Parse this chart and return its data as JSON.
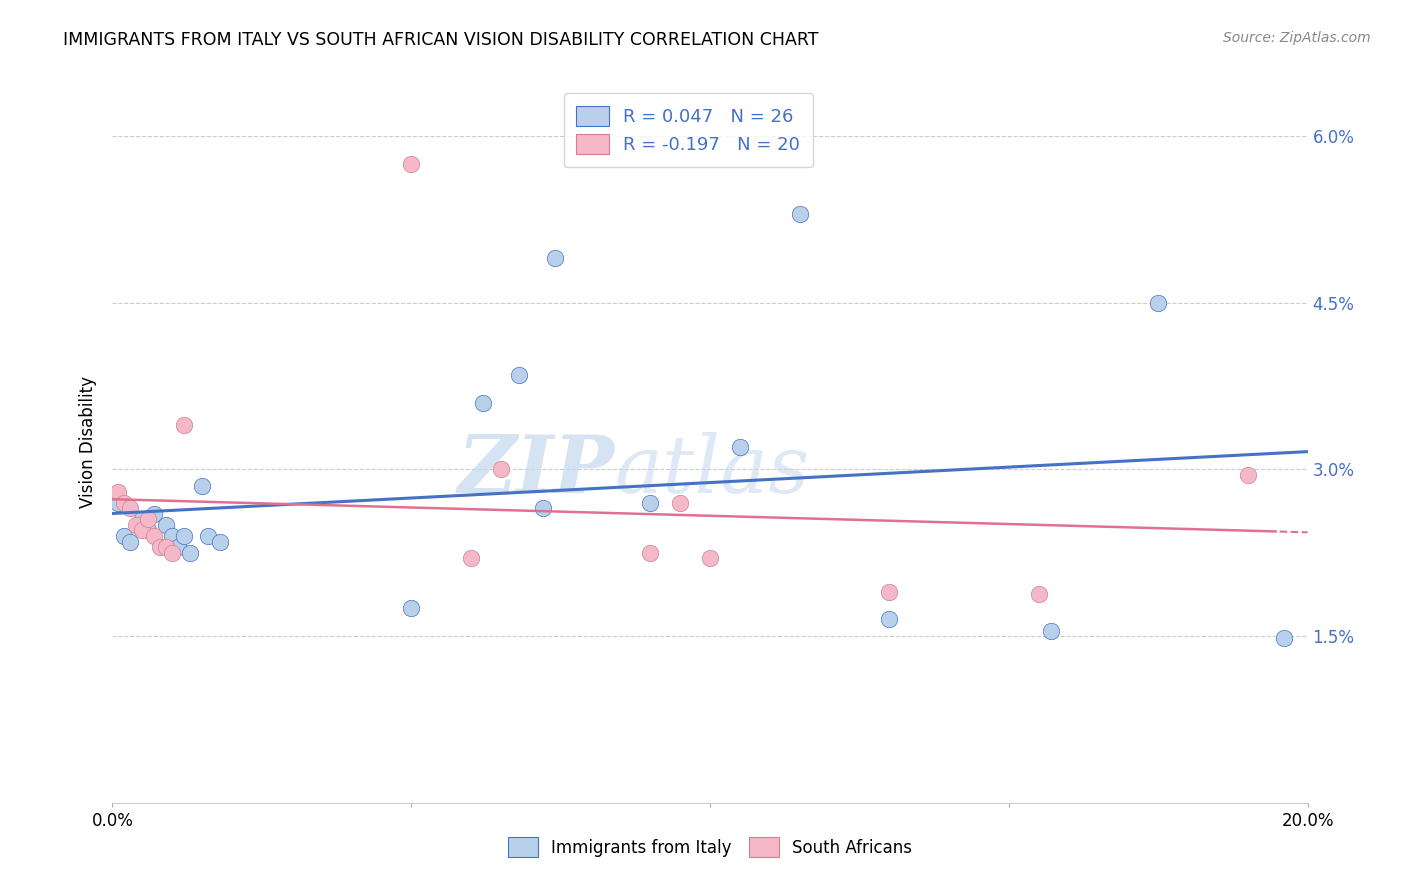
{
  "title": "IMMIGRANTS FROM ITALY VS SOUTH AFRICAN VISION DISABILITY CORRELATION CHART",
  "source": "Source: ZipAtlas.com",
  "ylabel": "Vision Disability",
  "xlabel": "",
  "xlim": [
    0.0,
    0.2
  ],
  "ylim": [
    0.0,
    0.065
  ],
  "yticks": [
    0.015,
    0.03,
    0.045,
    0.06
  ],
  "ytick_labels": [
    "1.5%",
    "3.0%",
    "4.5%",
    "6.0%"
  ],
  "xticks": [
    0.0,
    0.05,
    0.1,
    0.15,
    0.2
  ],
  "xtick_labels": [
    "0.0%",
    "",
    "",
    "",
    "20.0%"
  ],
  "legend1_label": "R = 0.047   N = 26",
  "legend2_label": "R = -0.197   N = 20",
  "legend_foot1": "Immigrants from Italy",
  "legend_foot2": "South Africans",
  "blue_color": "#b8d0ea",
  "pink_color": "#f5b8c8",
  "blue_line_color": "#4472c4",
  "pink_line_color": "#e07090",
  "grid_color": "#cccccc",
  "background_color": "#ffffff",
  "blue_R": 0.047,
  "blue_N": 26,
  "pink_R": -0.197,
  "pink_N": 20,
  "blue_points_x": [
    0.001,
    0.002,
    0.003,
    0.005,
    0.006,
    0.007,
    0.009,
    0.01,
    0.011,
    0.012,
    0.013,
    0.015,
    0.016,
    0.018,
    0.05,
    0.062,
    0.068,
    0.072,
    0.074,
    0.09,
    0.105,
    0.115,
    0.13,
    0.157,
    0.175,
    0.196
  ],
  "blue_points_y": [
    0.027,
    0.024,
    0.0235,
    0.0255,
    0.0245,
    0.026,
    0.025,
    0.024,
    0.023,
    0.024,
    0.0225,
    0.0285,
    0.024,
    0.0235,
    0.0175,
    0.036,
    0.0385,
    0.0265,
    0.049,
    0.027,
    0.032,
    0.053,
    0.0165,
    0.0155,
    0.045,
    0.0148
  ],
  "pink_points_x": [
    0.001,
    0.002,
    0.003,
    0.004,
    0.005,
    0.006,
    0.007,
    0.008,
    0.009,
    0.01,
    0.012,
    0.05,
    0.06,
    0.065,
    0.09,
    0.095,
    0.1,
    0.13,
    0.155,
    0.19
  ],
  "pink_points_y": [
    0.028,
    0.027,
    0.0265,
    0.025,
    0.0245,
    0.0255,
    0.024,
    0.023,
    0.023,
    0.0225,
    0.034,
    0.0575,
    0.022,
    0.03,
    0.0225,
    0.027,
    0.022,
    0.019,
    0.0188,
    0.0295
  ],
  "watermark_zip": "ZIP",
  "watermark_atlas": "atlas",
  "dot_size": 140
}
